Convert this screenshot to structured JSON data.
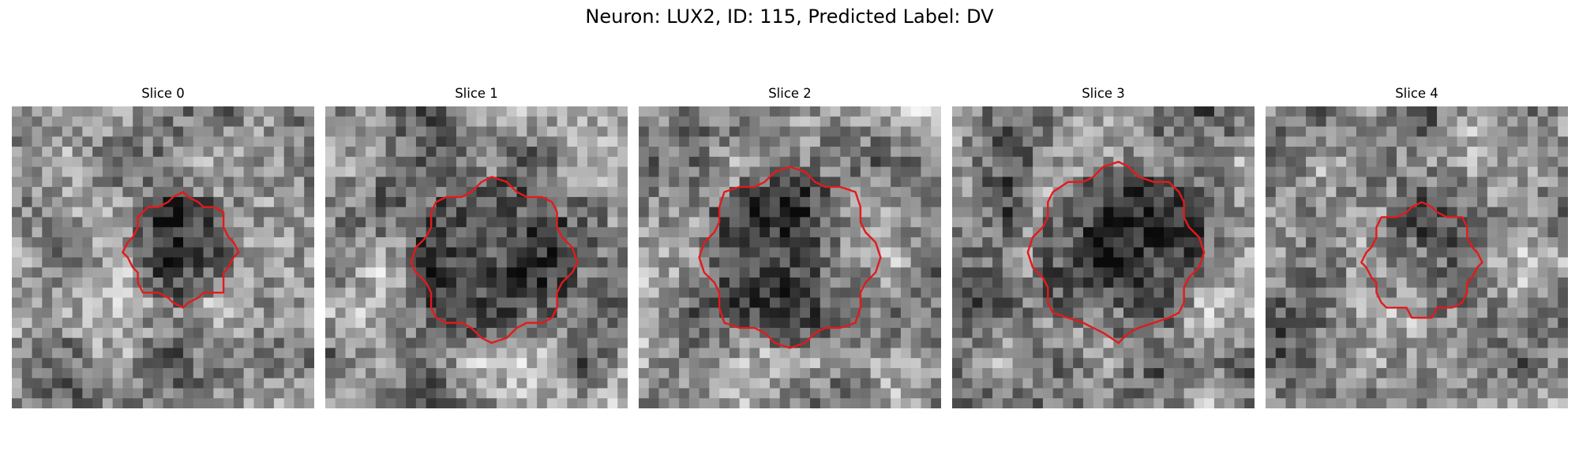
{
  "figure": {
    "title": "Neuron: LUX2, ID: 115, Predicted Label: DV"
  },
  "image_description": "Five grayscale microscopy image patches (noisy pixel grids) each overlaid with a red outline marking the neuron region of interest.",
  "colors": {
    "roi_outline": "#e31a1c",
    "background": "#ffffff"
  },
  "panels": [
    {
      "title": "Slice 0"
    },
    {
      "title": "Slice 1"
    },
    {
      "title": "Slice 2"
    },
    {
      "title": "Slice 3"
    },
    {
      "title": "Slice 4"
    }
  ]
}
